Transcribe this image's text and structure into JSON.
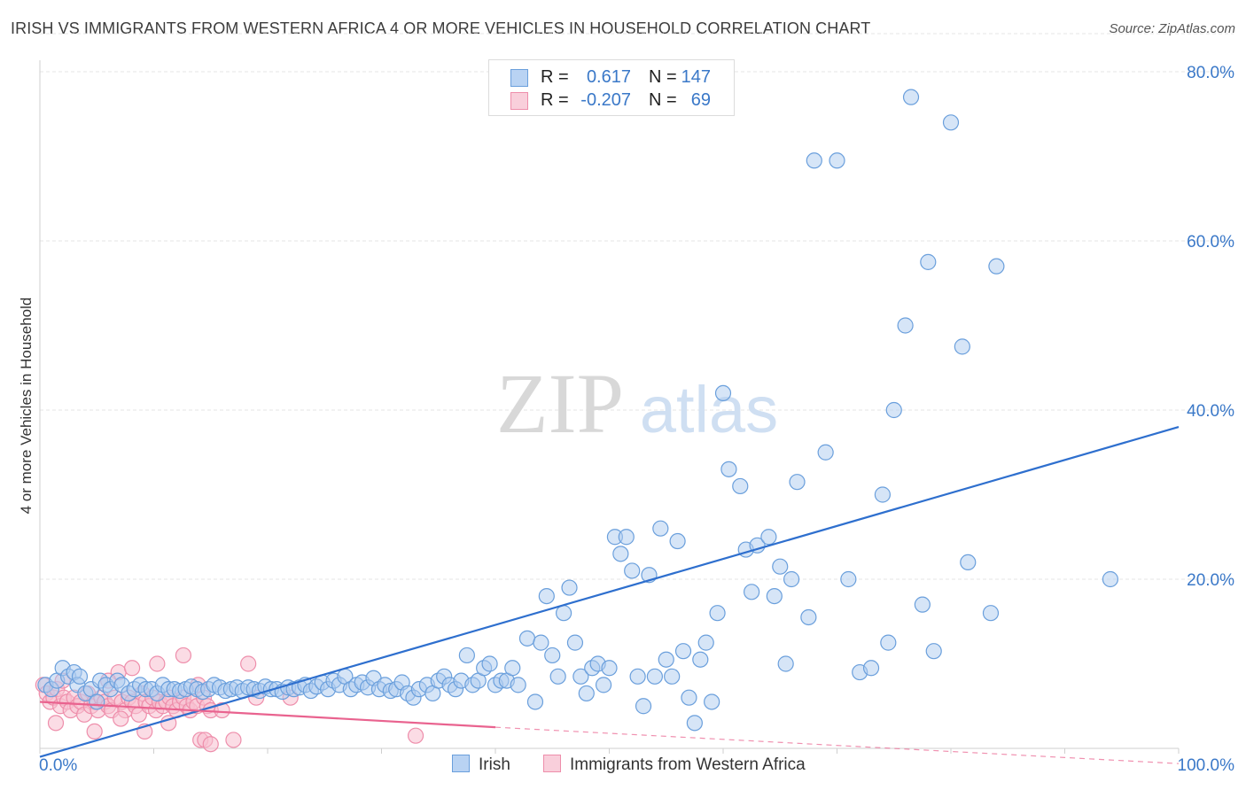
{
  "title": "IRISH VS IMMIGRANTS FROM WESTERN AFRICA 4 OR MORE VEHICLES IN HOUSEHOLD CORRELATION CHART",
  "source": "Source: ZipAtlas.com",
  "watermark": {
    "zip": "ZIP",
    "atlas": "atlas"
  },
  "legend_top": {
    "rows": [
      {
        "r_label": "R =",
        "r_value": "0.617",
        "n_label": "N =",
        "n_value": "147",
        "color": "#8ab4e8"
      },
      {
        "r_label": "R =",
        "r_value": "-0.207",
        "n_label": "N =",
        "n_value": "69",
        "color": "#f4a9be"
      }
    ]
  },
  "legend_bottom": {
    "irish": "Irish",
    "western_africa": "Immigrants from Western Africa"
  },
  "colors": {
    "irish_fill": "#aecbf0",
    "irish_stroke": "#6a9fdc",
    "irish_line": "#2e6fce",
    "wa_fill": "#f7c0cf",
    "wa_stroke": "#ee8eab",
    "wa_line": "#e9638f",
    "grid": "#e6e6e6",
    "tick_text": "#3a78c8"
  },
  "chart_data": {
    "type": "scatter",
    "ylabel": "4 or more Vehicles in Household",
    "xlim": [
      0,
      100
    ],
    "ylim": [
      0,
      85
    ],
    "x_tick_labels": [
      "0.0%",
      "100.0%"
    ],
    "y_ticks": [
      20,
      40,
      60,
      80
    ],
    "y_tick_labels": [
      "20.0%",
      "40.0%",
      "60.0%",
      "80.0%"
    ],
    "grid": true,
    "series": [
      {
        "name": "Irish",
        "trend": {
          "x": [
            0,
            100
          ],
          "y": [
            -1,
            38
          ]
        },
        "points": [
          [
            0.5,
            7.5
          ],
          [
            1.0,
            7.0
          ],
          [
            1.5,
            8.0
          ],
          [
            2.0,
            9.5
          ],
          [
            2.5,
            8.5
          ],
          [
            3.0,
            9.0
          ],
          [
            3.3,
            7.5
          ],
          [
            3.5,
            8.5
          ],
          [
            4.0,
            6.5
          ],
          [
            4.5,
            7.0
          ],
          [
            5.0,
            5.5
          ],
          [
            5.3,
            8.0
          ],
          [
            5.8,
            7.5
          ],
          [
            6.2,
            7.0
          ],
          [
            6.8,
            8.0
          ],
          [
            7.2,
            7.5
          ],
          [
            7.8,
            6.5
          ],
          [
            8.3,
            7.0
          ],
          [
            8.8,
            7.5
          ],
          [
            9.3,
            7.0
          ],
          [
            9.8,
            7.0
          ],
          [
            10.3,
            6.5
          ],
          [
            10.8,
            7.5
          ],
          [
            11.3,
            7.0
          ],
          [
            11.8,
            7.0
          ],
          [
            12.3,
            6.8
          ],
          [
            12.8,
            7.0
          ],
          [
            13.3,
            7.3
          ],
          [
            13.8,
            7.0
          ],
          [
            14.3,
            6.7
          ],
          [
            14.8,
            7.0
          ],
          [
            15.3,
            7.5
          ],
          [
            15.8,
            7.2
          ],
          [
            16.3,
            6.8
          ],
          [
            16.8,
            7.0
          ],
          [
            17.3,
            7.2
          ],
          [
            17.8,
            6.8
          ],
          [
            18.3,
            7.2
          ],
          [
            18.8,
            7.0
          ],
          [
            19.3,
            6.8
          ],
          [
            19.8,
            7.3
          ],
          [
            20.3,
            7.0
          ],
          [
            20.8,
            7.0
          ],
          [
            21.3,
            6.7
          ],
          [
            21.8,
            7.2
          ],
          [
            22.3,
            7.0
          ],
          [
            22.8,
            7.2
          ],
          [
            23.3,
            7.5
          ],
          [
            23.8,
            6.8
          ],
          [
            24.3,
            7.3
          ],
          [
            24.8,
            7.8
          ],
          [
            25.3,
            7.0
          ],
          [
            25.8,
            8.0
          ],
          [
            26.3,
            7.5
          ],
          [
            26.8,
            8.5
          ],
          [
            27.3,
            7.0
          ],
          [
            27.8,
            7.5
          ],
          [
            28.3,
            7.8
          ],
          [
            28.8,
            7.2
          ],
          [
            29.3,
            8.3
          ],
          [
            29.8,
            7.0
          ],
          [
            30.3,
            7.5
          ],
          [
            30.8,
            6.8
          ],
          [
            31.3,
            7.0
          ],
          [
            31.8,
            7.8
          ],
          [
            32.3,
            6.5
          ],
          [
            32.8,
            6.0
          ],
          [
            33.3,
            7.0
          ],
          [
            34.0,
            7.5
          ],
          [
            34.5,
            6.5
          ],
          [
            35.0,
            8.0
          ],
          [
            35.5,
            8.5
          ],
          [
            36.0,
            7.5
          ],
          [
            36.5,
            7.0
          ],
          [
            37.0,
            8.0
          ],
          [
            37.5,
            11.0
          ],
          [
            38.0,
            7.5
          ],
          [
            38.5,
            8.0
          ],
          [
            39.0,
            9.5
          ],
          [
            39.5,
            10.0
          ],
          [
            40.0,
            7.5
          ],
          [
            40.5,
            8.0
          ],
          [
            41.0,
            8.0
          ],
          [
            41.5,
            9.5
          ],
          [
            42.0,
            7.5
          ],
          [
            42.8,
            13.0
          ],
          [
            43.5,
            5.5
          ],
          [
            44.0,
            12.5
          ],
          [
            44.5,
            18.0
          ],
          [
            45.0,
            11.0
          ],
          [
            45.5,
            8.5
          ],
          [
            46.0,
            16.0
          ],
          [
            46.5,
            19.0
          ],
          [
            47.0,
            12.5
          ],
          [
            47.5,
            8.5
          ],
          [
            48.0,
            6.5
          ],
          [
            48.5,
            9.5
          ],
          [
            49.0,
            10.0
          ],
          [
            49.5,
            7.5
          ],
          [
            50.0,
            9.5
          ],
          [
            50.5,
            25.0
          ],
          [
            51.0,
            23.0
          ],
          [
            51.5,
            25.0
          ],
          [
            52.0,
            21.0
          ],
          [
            52.5,
            8.5
          ],
          [
            53.0,
            5.0
          ],
          [
            53.5,
            20.5
          ],
          [
            54.0,
            8.5
          ],
          [
            54.5,
            26.0
          ],
          [
            55.0,
            10.5
          ],
          [
            55.5,
            8.5
          ],
          [
            56.0,
            24.5
          ],
          [
            56.5,
            11.5
          ],
          [
            57.0,
            6.0
          ],
          [
            57.5,
            3.0
          ],
          [
            58.0,
            10.5
          ],
          [
            58.5,
            12.5
          ],
          [
            59.0,
            5.5
          ],
          [
            59.5,
            16.0
          ],
          [
            60.0,
            42.0
          ],
          [
            60.5,
            33.0
          ],
          [
            61.5,
            31.0
          ],
          [
            62.0,
            23.5
          ],
          [
            62.5,
            18.5
          ],
          [
            63.0,
            24.0
          ],
          [
            64.0,
            25.0
          ],
          [
            64.5,
            18.0
          ],
          [
            65.0,
            21.5
          ],
          [
            65.5,
            10.0
          ],
          [
            66.0,
            20.0
          ],
          [
            66.5,
            31.5
          ],
          [
            67.5,
            15.5
          ],
          [
            68.0,
            69.5
          ],
          [
            69.0,
            35.0
          ],
          [
            70.0,
            69.5
          ],
          [
            71.0,
            20.0
          ],
          [
            72.0,
            9.0
          ],
          [
            73.0,
            9.5
          ],
          [
            74.0,
            30.0
          ],
          [
            74.5,
            12.5
          ],
          [
            75.0,
            40.0
          ],
          [
            76.0,
            50.0
          ],
          [
            76.5,
            77.0
          ],
          [
            77.5,
            17.0
          ],
          [
            78.0,
            57.5
          ],
          [
            78.5,
            11.5
          ],
          [
            80.0,
            74.0
          ],
          [
            81.0,
            47.5
          ],
          [
            81.5,
            22.0
          ],
          [
            83.5,
            16.0
          ],
          [
            84.0,
            57.0
          ],
          [
            94.0,
            20.0
          ]
        ]
      },
      {
        "name": "Immigrants from Western Africa",
        "trend": {
          "x": [
            0,
            40
          ],
          "y": [
            5.5,
            2.5
          ]
        },
        "trend_dashed": {
          "x": [
            40,
            100
          ],
          "y": [
            2.5,
            -1.8
          ]
        },
        "points": [
          [
            0.3,
            7.5
          ],
          [
            0.6,
            6.5
          ],
          [
            0.9,
            5.5
          ],
          [
            1.2,
            6.0
          ],
          [
            1.5,
            7.0
          ],
          [
            1.8,
            5.0
          ],
          [
            2.1,
            6.0
          ],
          [
            2.4,
            5.5
          ],
          [
            2.7,
            4.5
          ],
          [
            3.0,
            6.0
          ],
          [
            3.3,
            5.0
          ],
          [
            3.6,
            5.5
          ],
          [
            3.9,
            4.0
          ],
          [
            4.2,
            6.5
          ],
          [
            4.5,
            5.0
          ],
          [
            4.8,
            5.5
          ],
          [
            5.1,
            4.5
          ],
          [
            5.4,
            6.0
          ],
          [
            5.7,
            5.5
          ],
          [
            6.0,
            5.0
          ],
          [
            6.3,
            4.5
          ],
          [
            6.6,
            6.0
          ],
          [
            6.9,
            9.0
          ],
          [
            7.2,
            5.5
          ],
          [
            7.5,
            4.5
          ],
          [
            7.8,
            6.0
          ],
          [
            8.1,
            5.5
          ],
          [
            8.4,
            5.0
          ],
          [
            8.7,
            4.0
          ],
          [
            9.0,
            6.5
          ],
          [
            9.3,
            5.5
          ],
          [
            9.6,
            5.0
          ],
          [
            9.9,
            6.0
          ],
          [
            10.2,
            4.5
          ],
          [
            10.5,
            5.5
          ],
          [
            10.8,
            5.0
          ],
          [
            11.1,
            5.5
          ],
          [
            11.4,
            6.0
          ],
          [
            11.7,
            5.0
          ],
          [
            12.0,
            4.5
          ],
          [
            12.3,
            5.5
          ],
          [
            12.6,
            6.0
          ],
          [
            12.9,
            5.0
          ],
          [
            13.2,
            4.5
          ],
          [
            13.5,
            5.5
          ],
          [
            13.8,
            5.0
          ],
          [
            14.1,
            1.0
          ],
          [
            14.4,
            6.0
          ],
          [
            14.7,
            5.0
          ],
          [
            15.0,
            4.5
          ],
          [
            1.4,
            3.0
          ],
          [
            4.8,
            2.0
          ],
          [
            7.1,
            3.5
          ],
          [
            9.2,
            2.0
          ],
          [
            11.3,
            3.0
          ],
          [
            14.5,
            1.0
          ],
          [
            12.6,
            11.0
          ],
          [
            10.3,
            10.0
          ],
          [
            8.1,
            9.5
          ],
          [
            13.9,
            7.5
          ],
          [
            16.0,
            4.5
          ],
          [
            17.0,
            1.0
          ],
          [
            18.3,
            10.0
          ],
          [
            19.0,
            6.0
          ],
          [
            22.0,
            6.0
          ],
          [
            33.0,
            1.5
          ],
          [
            2.0,
            8.0
          ],
          [
            6.0,
            8.0
          ],
          [
            15.0,
            0.5
          ]
        ]
      }
    ]
  }
}
